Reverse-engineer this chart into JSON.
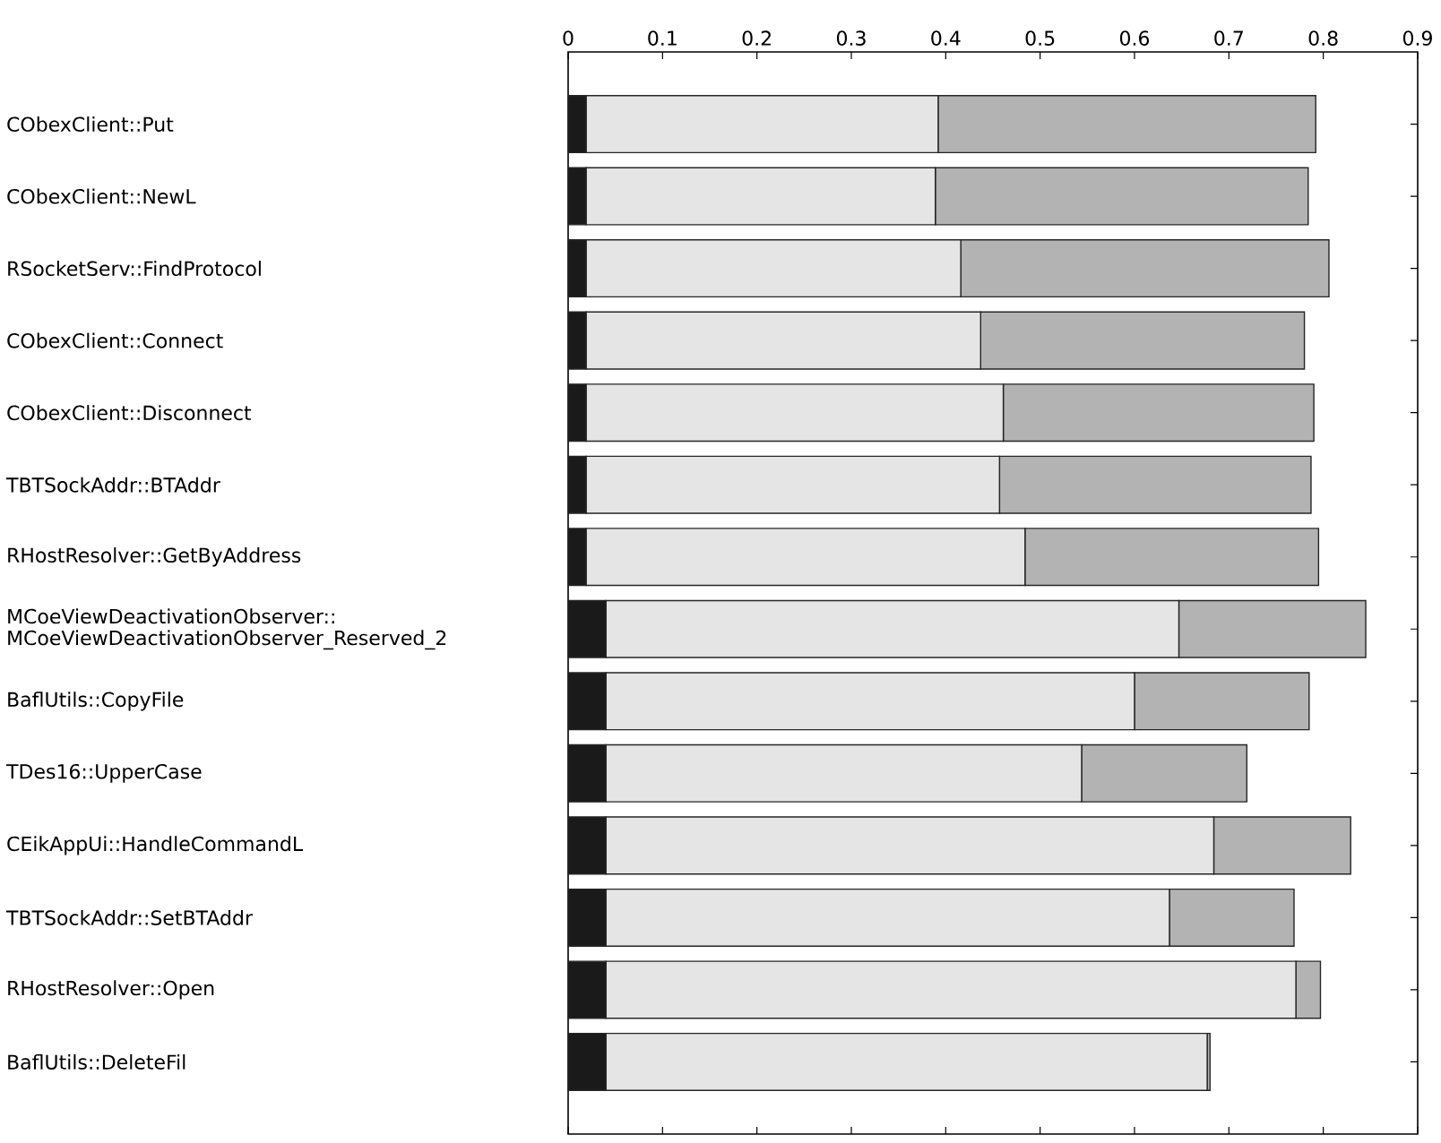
{
  "chart_data": {
    "type": "bar",
    "orientation": "horizontal",
    "stacked": true,
    "categories": [
      "CObexClient::Put",
      "CObexClient::NewL",
      "RSocketServ::FindProtocol",
      "CObexClient::Connect",
      "CObexClient::Disconnect",
      "TBTSockAddr::BTAddr",
      "RHostResolver::GetByAddress",
      "MCoeViewDeactivationObserver::\nMCoeViewDeactivationObserver_Reserved_2",
      "BaflUtils::CopyFile",
      "TDes16::UpperCase",
      "CEikAppUi::HandleCommandL",
      "TBTSockAddr::SetBTAddr",
      "RHostResolver::Open",
      "BaflUtils::DeleteFil"
    ],
    "series": [
      {
        "color": "#1a1a1a",
        "values": [
          0.019,
          0.019,
          0.019,
          0.019,
          0.019,
          0.019,
          0.019,
          0.04,
          0.04,
          0.04,
          0.04,
          0.04,
          0.04,
          0.04
        ]
      },
      {
        "color": "#e5e5e5",
        "values": [
          0.373,
          0.37,
          0.397,
          0.418,
          0.442,
          0.438,
          0.465,
          0.607,
          0.56,
          0.504,
          0.644,
          0.597,
          0.731,
          0.637
        ]
      },
      {
        "color": "#b3b3b3",
        "values": [
          0.4,
          0.395,
          0.39,
          0.343,
          0.329,
          0.33,
          0.311,
          0.198,
          0.185,
          0.175,
          0.145,
          0.132,
          0.026,
          0.003
        ]
      }
    ],
    "xlim": [
      0,
      0.9
    ],
    "xticks": [
      0,
      0.1,
      0.2,
      0.3,
      0.4,
      0.5,
      0.6,
      0.7,
      0.8,
      0.9
    ]
  }
}
